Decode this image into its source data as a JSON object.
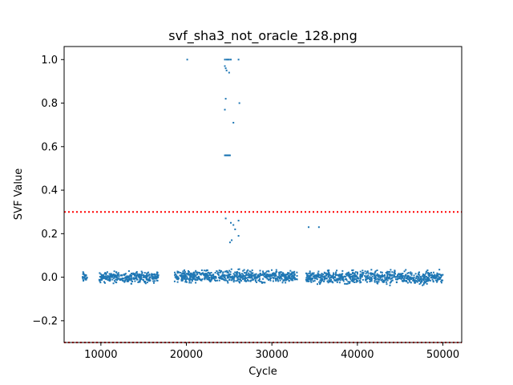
{
  "chart_data": {
    "type": "scatter",
    "title": "svf_sha3_not_oracle_128.png",
    "xlabel": "Cycle",
    "ylabel": "SVF Value",
    "xlim": [
      5700,
      52200
    ],
    "ylim": [
      -0.3,
      1.06
    ],
    "xticks": [
      10000,
      20000,
      30000,
      40000,
      50000
    ],
    "yticks": [
      -0.2,
      0.0,
      0.2,
      0.4,
      0.6,
      0.8,
      1.0
    ],
    "ytick_labels": [
      "−0.2",
      "0.0",
      "0.2",
      "0.4",
      "0.6",
      "0.8",
      "1.0"
    ],
    "grid": false,
    "series": [
      {
        "color": "#1f77b4",
        "points": [
          [
            20100,
            1.0
          ],
          [
            24500,
            1.0
          ],
          [
            24700,
            1.0
          ],
          [
            24850,
            1.0
          ],
          [
            25000,
            1.0
          ],
          [
            25200,
            1.0
          ],
          [
            26100,
            1.0
          ],
          [
            24500,
            0.97
          ],
          [
            24600,
            0.96
          ],
          [
            24700,
            0.95
          ],
          [
            25000,
            0.94
          ],
          [
            24600,
            0.82
          ],
          [
            26200,
            0.8
          ],
          [
            24500,
            0.77
          ],
          [
            25500,
            0.71
          ],
          [
            24500,
            0.56
          ],
          [
            24600,
            0.56
          ],
          [
            24700,
            0.56
          ],
          [
            24800,
            0.56
          ],
          [
            24900,
            0.56
          ],
          [
            25000,
            0.56
          ],
          [
            25100,
            0.56
          ],
          [
            24600,
            0.27
          ],
          [
            25200,
            0.25
          ],
          [
            26100,
            0.26
          ],
          [
            25500,
            0.24
          ],
          [
            25700,
            0.22
          ],
          [
            34300,
            0.23
          ],
          [
            35500,
            0.23
          ],
          [
            26100,
            0.19
          ],
          [
            25300,
            0.17
          ],
          [
            25100,
            0.16
          ]
        ]
      }
    ],
    "noise_bands": [
      {
        "x_start": 7800,
        "x_end": 8400,
        "center": 0.0,
        "spread": 0.018
      },
      {
        "x_start": 9800,
        "x_end": 16800,
        "center": 0.0,
        "spread": 0.018
      },
      {
        "x_start": 18600,
        "x_end": 33000,
        "center": 0.003,
        "spread": 0.02
      },
      {
        "x_start": 34000,
        "x_end": 50000,
        "center": 0.0,
        "spread": 0.022
      }
    ],
    "reference_lines": [
      {
        "y": 0.3,
        "color": "#ff0000",
        "style": "dotted"
      },
      {
        "y": -0.3,
        "color": "#ff0000",
        "style": "dotted"
      }
    ]
  }
}
